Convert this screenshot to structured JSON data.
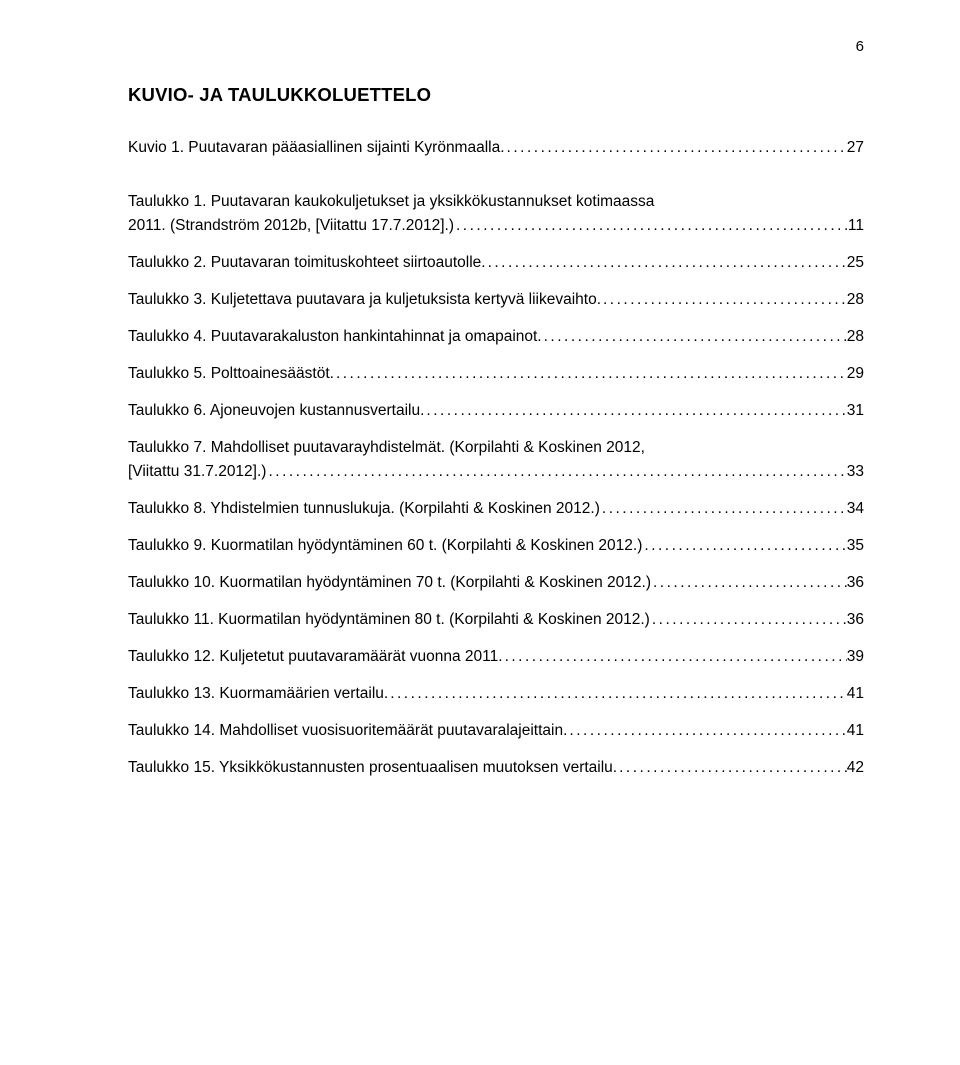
{
  "page_number": "6",
  "heading": "KUVIO- JA TAULUKKOLUETTELO",
  "entries": [
    {
      "label": "Kuvio 1. Puutavaran pääasiallinen sijainti Kyrönmaalla.",
      "page": "27",
      "gap_after": true
    },
    {
      "label_line1": "Taulukko 1. Puutavaran kaukokuljetukset ja yksikkökustannukset kotimaassa",
      "label_line2": "2011. (Strandström 2012b, [Viitattu 17.7.2012].)",
      "page": "11",
      "stacked": true
    },
    {
      "label": "Taulukko 2. Puutavaran toimituskohteet siirtoautolle.",
      "page": "25"
    },
    {
      "label": "Taulukko 3. Kuljetettava puutavara ja kuljetuksista kertyvä liikevaihto.",
      "page": "28"
    },
    {
      "label": "Taulukko 4. Puutavarakaluston hankintahinnat ja omapainot.",
      "page": "28"
    },
    {
      "label": "Taulukko 5. Polttoainesäästöt.",
      "page": "29"
    },
    {
      "label": "Taulukko 6. Ajoneuvojen kustannusvertailu.",
      "page": "31"
    },
    {
      "label_line1": "Taulukko 7. Mahdolliset puutavarayhdistelmät. (Korpilahti & Koskinen 2012,",
      "label_line2": "[Viitattu 31.7.2012].)",
      "page": "33",
      "stacked": true
    },
    {
      "label": "Taulukko 8. Yhdistelmien tunnuslukuja. (Korpilahti & Koskinen 2012.)",
      "page": "34"
    },
    {
      "label": "Taulukko 9. Kuormatilan hyödyntäminen 60 t. (Korpilahti & Koskinen 2012.)",
      "page": "35"
    },
    {
      "label": "Taulukko 10. Kuormatilan hyödyntäminen 70 t. (Korpilahti & Koskinen 2012.)",
      "page": "36"
    },
    {
      "label": "Taulukko 11. Kuormatilan hyödyntäminen 80 t. (Korpilahti & Koskinen 2012.)",
      "page": "36"
    },
    {
      "label": "Taulukko 12. Kuljetetut puutavaramäärät vuonna 2011.",
      "page": "39"
    },
    {
      "label": "Taulukko 13. Kuormamäärien vertailu.",
      "page": "41"
    },
    {
      "label": "Taulukko 14. Mahdolliset vuosisuoritemäärät puutavaralajeittain.",
      "page": "41"
    },
    {
      "label": "Taulukko 15. Yksikkökustannusten prosentuaalisen muutoksen vertailu.",
      "page": "42"
    }
  ]
}
